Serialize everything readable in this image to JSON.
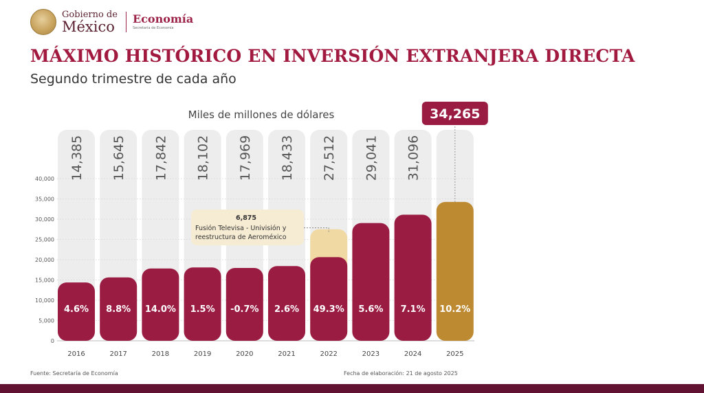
{
  "header": {
    "gov_line1": "Gobierno de",
    "gov_line2": "México",
    "ministry": "Economía",
    "ministry_sub": "Secretaría de Economía"
  },
  "title": "MÁXIMO HISTÓRICO EN INVERSIÓN EXTRANJERA DIRECTA",
  "subtitle": "Segundo trimestre de cada año",
  "colors": {
    "title": "#a1193e",
    "bar": "#9b1c43",
    "highlight_bar": "#bd8a31",
    "annotation_fill": "#f0d9a3",
    "bottom_bar": "#611232"
  },
  "chart_data": {
    "type": "bar",
    "unit_label": "Miles de millones de dólares",
    "categories": [
      "2016",
      "2017",
      "2018",
      "2019",
      "2020",
      "2021",
      "2022",
      "2023",
      "2024",
      "2025"
    ],
    "values": [
      14385,
      15645,
      17842,
      18102,
      17969,
      18433,
      27512,
      29041,
      31096,
      34265
    ],
    "value_labels": [
      "14,385",
      "15,645",
      "17,842",
      "18,102",
      "17,969",
      "18,433",
      "27,512",
      "29,041",
      "31,096",
      "34,265"
    ],
    "growth_labels": [
      "4.6%",
      "8.8%",
      "14.0%",
      "1.5%",
      "-0.7%",
      "2.6%",
      "49.3%",
      "5.6%",
      "7.1%",
      "10.2%"
    ],
    "highlight_index": 9,
    "stacked_segment": {
      "index": 6,
      "value": 6875,
      "value_label": "6,875",
      "note_lines": [
        "Fusión Televisa - Univisión y",
        "reestructura de Aeroméxico"
      ]
    },
    "ylim": [
      0,
      40000
    ],
    "yticks": [
      0,
      5000,
      10000,
      15000,
      20000,
      25000,
      30000,
      35000,
      40000
    ],
    "ytick_labels": [
      "0",
      "5,000",
      "10,000",
      "15,000",
      "20,000",
      "25,000",
      "30,000",
      "35,000",
      "40,000"
    ],
    "grid": true
  },
  "footer": {
    "source": "Fuente: Secretaría de Economía",
    "date": "Fecha de elaboración: 21 de agosto 2025"
  }
}
